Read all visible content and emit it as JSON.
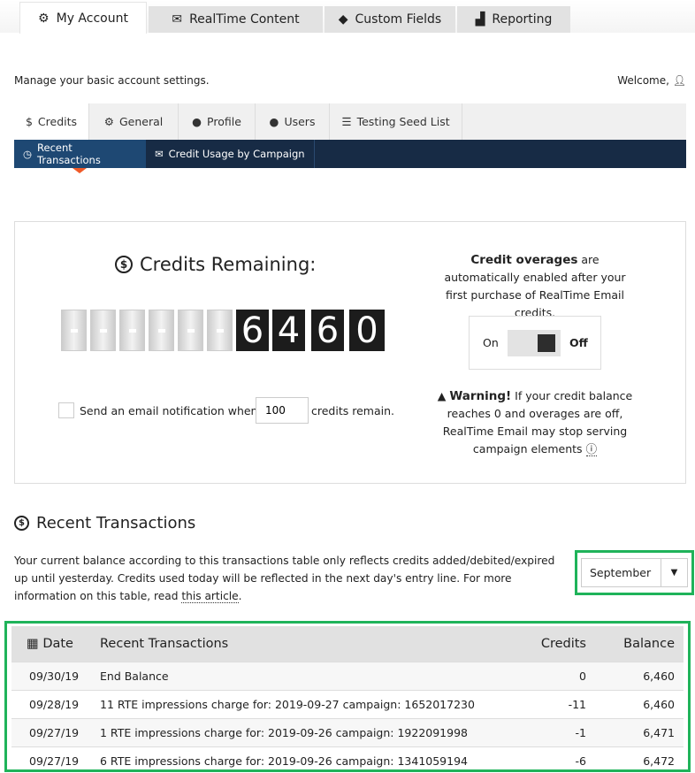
{
  "top_tabs": [
    {
      "label": "My Account",
      "icon": "gear-icon",
      "active": true
    },
    {
      "label": "RealTime Content",
      "icon": "envelope-icon"
    },
    {
      "label": "Custom Fields",
      "icon": "tag-icon"
    },
    {
      "label": "Reporting",
      "icon": "bar-chart-icon"
    }
  ],
  "intro": "Manage your basic account settings.",
  "welcome": "Welcome,",
  "sub_tabs": [
    {
      "label": "Credits",
      "icon": "dollar-circle-icon",
      "active": true
    },
    {
      "label": "General",
      "icon": "gear-icon"
    },
    {
      "label": "Profile",
      "icon": "user-icon"
    },
    {
      "label": "Users",
      "icon": "users-icon"
    },
    {
      "label": "Testing Seed List",
      "icon": "list-icon"
    }
  ],
  "nav": [
    {
      "label": "Recent Transactions",
      "icon": "clock-icon",
      "active": true
    },
    {
      "label": "Credit Usage by Campaign",
      "icon": "envelope-icon"
    }
  ],
  "credits": {
    "title": "Credits Remaining:",
    "digits": [
      "6",
      "4",
      "6",
      "0"
    ],
    "notify_label": "Send an email notification when",
    "notify_value": "100",
    "notify_suffix": "credits remain."
  },
  "overages": {
    "bold": "Credit overages",
    "text": " are automatically enabled after your first purchase of RealTime Email credits.",
    "on": "On",
    "off": "Off",
    "state": "off",
    "warning_bold": "Warning!",
    "warning_text": " If your credit balance reaches 0 and overages are off, RealTime Email may stop serving campaign elements"
  },
  "transactions": {
    "title": "Recent Transactions",
    "desc": "Your current balance according to this transactions table only reflects credits added/debited/expired up until yesterday. Credits used today will be reflected in the next day's entry line. For more information on this table, read ",
    "link": "this article",
    "desc_end": ".",
    "month": "September",
    "columns": [
      "Date",
      "Recent Transactions",
      "Credits",
      "Balance"
    ],
    "rows": [
      {
        "date": "09/30/19",
        "desc": "End Balance",
        "credits": "0",
        "balance": "6,460"
      },
      {
        "date": "09/28/19",
        "desc": "11 RTE impressions charge for: 2019-09-27 campaign: 1652017230",
        "credits": "-11",
        "balance": "6,460"
      },
      {
        "date": "09/27/19",
        "desc": "1 RTE impressions charge for: 2019-09-26 campaign: 1922091998",
        "credits": "-1",
        "balance": "6,471"
      },
      {
        "date": "09/27/19",
        "desc": "6 RTE impressions charge for: 2019-09-26 campaign: 1341059194",
        "credits": "-6",
        "balance": "6,472"
      }
    ]
  },
  "colors": {
    "nav": "#172b45",
    "nav_active": "#1e4873",
    "highlight": "#1fb35a",
    "marker": "#f05a28"
  }
}
